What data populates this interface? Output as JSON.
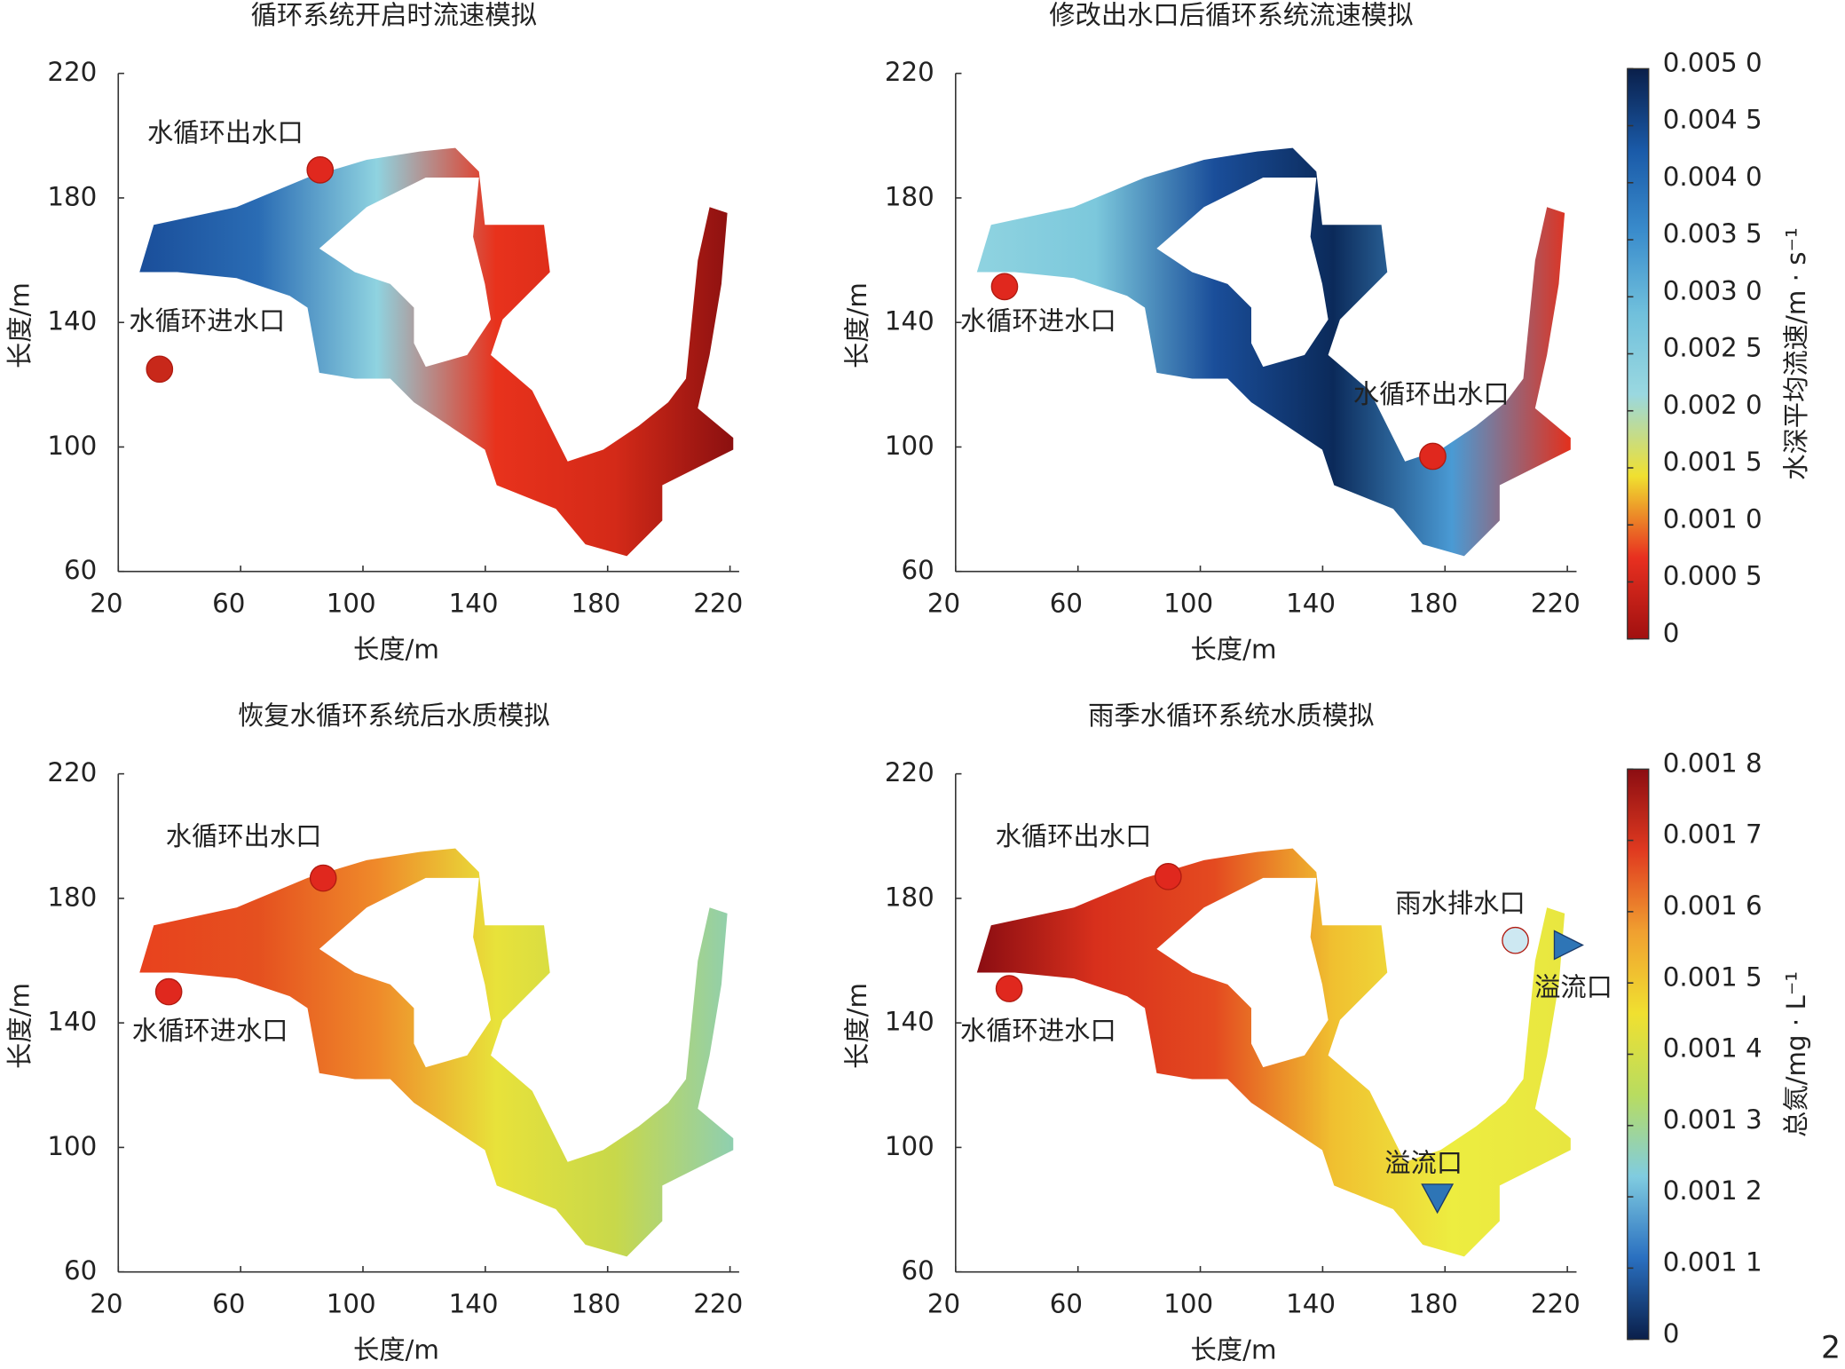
{
  "chart_data": [
    {
      "type": "heatmap",
      "title": "循环系统开启时流速模拟",
      "x_label": "长度/m",
      "y_label": "长度/m",
      "xlim": [
        20,
        223
      ],
      "ylim": [
        60,
        220
      ],
      "xticks": [
        20,
        60,
        100,
        140,
        180,
        220
      ],
      "yticks": [
        60,
        100,
        140,
        180,
        220
      ],
      "field_colors": [
        "#1a4e9a",
        "#2a6cb4",
        "#8fd3e0",
        "#e8321c",
        "#d42a18",
        "#8b1010"
      ],
      "markers": [
        {
          "x": 86,
          "y": 189,
          "shape": "circle",
          "color": "#e0281e"
        },
        {
          "x": 33.5,
          "y": 125,
          "shape": "circle",
          "color": "#c8281a"
        }
      ],
      "annotations": [
        {
          "text": "水循环出水口",
          "x": 55,
          "y": 200.5
        },
        {
          "text": "水循环进水口",
          "x": 49,
          "y": 140
        }
      ]
    },
    {
      "type": "heatmap",
      "title": "修改出水口后循环系统流速模拟",
      "x_label": "长度/m",
      "y_label": "长度/m",
      "xlim": [
        20,
        223
      ],
      "ylim": [
        60,
        220
      ],
      "xticks": [
        20,
        60,
        100,
        140,
        180,
        220
      ],
      "yticks": [
        60,
        100,
        140,
        180,
        220
      ],
      "field_colors": [
        "#8fd3e0",
        "#7cc8dc",
        "#1a4e9a",
        "#0b2a5a",
        "#4a9ad4",
        "#e3301c"
      ],
      "markers": [
        {
          "x": 36,
          "y": 151.5,
          "shape": "circle",
          "color": "#e0281e"
        },
        {
          "x": 176,
          "y": 97,
          "shape": "circle",
          "color": "#e0281e"
        }
      ],
      "annotations": [
        {
          "text": "水循环进水口",
          "x": 47,
          "y": 140
        },
        {
          "text": "水循环出水口",
          "x": 175.5,
          "y": 116.5
        }
      ],
      "colorbar": {
        "label": "水深平均流速/m · s⁻¹",
        "levels": [
          "0",
          "0.000 5",
          "0.001 0",
          "0.001 5",
          "0.002 0",
          "0.002 5",
          "0.003 0",
          "0.003 5",
          "0.004 0",
          "0.004 5",
          "0.005 0"
        ],
        "colors": [
          "#a01010",
          "#e83020",
          "#f0e030",
          "#9ad8e0",
          "#70c0dc",
          "#3a8ccc",
          "#1a5aa8",
          "#0a1f4a"
        ]
      }
    },
    {
      "type": "heatmap",
      "title": "恢复水循环系统后水质模拟",
      "x_label": "长度/m",
      "y_label": "长度/m",
      "xlim": [
        20,
        223
      ],
      "ylim": [
        60,
        220
      ],
      "xticks": [
        20,
        60,
        100,
        140,
        180,
        220
      ],
      "yticks": [
        60,
        100,
        140,
        180,
        220
      ],
      "field_colors": [
        "#e8421e",
        "#e5501f",
        "#ef8a2a",
        "#e8e23a",
        "#c8d84a",
        "#8fcfb0"
      ],
      "markers": [
        {
          "x": 87,
          "y": 186.5,
          "shape": "circle",
          "color": "#e0281e"
        },
        {
          "x": 36.5,
          "y": 150,
          "shape": "circle",
          "color": "#e0281e"
        }
      ],
      "annotations": [
        {
          "text": "水循环出水口",
          "x": 61,
          "y": 199.5
        },
        {
          "text": "水循环进水口",
          "x": 50,
          "y": 137
        }
      ]
    },
    {
      "type": "heatmap",
      "title": "雨季水循环系统水质模拟",
      "x_label": "长度/m",
      "y_label": "长度/m",
      "xlim": [
        20,
        223
      ],
      "ylim": [
        60,
        220
      ],
      "xticks": [
        20,
        60,
        100,
        140,
        180,
        220
      ],
      "yticks": [
        60,
        100,
        140,
        180,
        220
      ],
      "field_colors": [
        "#8b0d12",
        "#d8301c",
        "#e44a20",
        "#f0c030",
        "#eded40",
        "#e8e640"
      ],
      "markers": [
        {
          "x": 89.5,
          "y": 187,
          "shape": "circle",
          "color": "#e0281e"
        },
        {
          "x": 37.5,
          "y": 151,
          "shape": "circle",
          "color": "#e0281e"
        },
        {
          "x": 203,
          "y": 166.5,
          "shape": "circle",
          "color": "#cde8f2"
        },
        {
          "x": 220,
          "y": 165,
          "shape": "triangle-right",
          "color": "#2e75b6"
        },
        {
          "x": 177.5,
          "y": 84,
          "shape": "triangle-down",
          "color": "#2e75b6"
        }
      ],
      "annotations": [
        {
          "text": "水循环出水口",
          "x": 58.5,
          "y": 199.5
        },
        {
          "text": "水循环进水口",
          "x": 47,
          "y": 137
        },
        {
          "text": "雨水排水口",
          "x": 185,
          "y": 178
        },
        {
          "text": "溢流口",
          "x": 222,
          "y": 151
        },
        {
          "text": "溢流口",
          "x": 173,
          "y": 94.5
        }
      ],
      "colorbar": {
        "label": "总氮/mg · L⁻¹",
        "levels": [
          "0",
          "0.001 1",
          "0.001 2",
          "0.001 3",
          "0.001 4",
          "0.001 5",
          "0.001 6",
          "0.001 7",
          "0.001 8"
        ],
        "colors": [
          "#0a1f4a",
          "#2a70c0",
          "#80cce0",
          "#b8dc60",
          "#f0e030",
          "#f0a030",
          "#e03a20",
          "#8b0d12"
        ]
      }
    }
  ],
  "page_number": "2"
}
